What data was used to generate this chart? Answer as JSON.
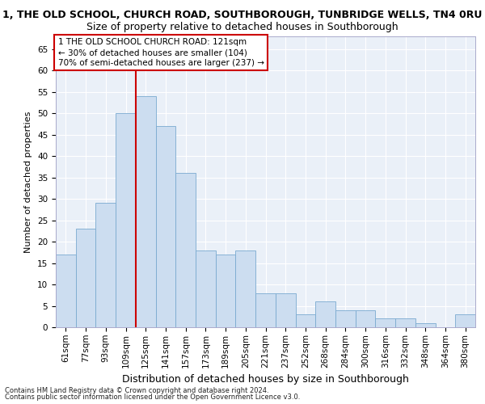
{
  "title_line1": "1, THE OLD SCHOOL, CHURCH ROAD, SOUTHBOROUGH, TUNBRIDGE WELLS, TN4 0RU",
  "title_line2": "Size of property relative to detached houses in Southborough",
  "xlabel": "Distribution of detached houses by size in Southborough",
  "ylabel": "Number of detached properties",
  "categories": [
    "61sqm",
    "77sqm",
    "93sqm",
    "109sqm",
    "125sqm",
    "141sqm",
    "157sqm",
    "173sqm",
    "189sqm",
    "205sqm",
    "221sqm",
    "237sqm",
    "252sqm",
    "268sqm",
    "284sqm",
    "300sqm",
    "316sqm",
    "332sqm",
    "348sqm",
    "364sqm",
    "380sqm"
  ],
  "values": [
    17,
    23,
    29,
    50,
    54,
    47,
    36,
    18,
    17,
    18,
    8,
    8,
    3,
    6,
    4,
    4,
    2,
    2,
    1,
    0,
    3
  ],
  "bar_color": "#ccddf0",
  "bar_edge_color": "#7aaad0",
  "vline_color": "#cc0000",
  "vline_x_index": 4,
  "annotation_text": "1 THE OLD SCHOOL CHURCH ROAD: 121sqm\n← 30% of detached houses are smaller (104)\n70% of semi-detached houses are larger (237) →",
  "annotation_box_color": "#ffffff",
  "annotation_box_edge": "#cc0000",
  "ylim": [
    0,
    68
  ],
  "yticks": [
    0,
    5,
    10,
    15,
    20,
    25,
    30,
    35,
    40,
    45,
    50,
    55,
    60,
    65
  ],
  "footer_line1": "Contains HM Land Registry data © Crown copyright and database right 2024.",
  "footer_line2": "Contains public sector information licensed under the Open Government Licence v3.0.",
  "bg_color": "#eaf0f8",
  "grid_color": "#ffffff",
  "title1_fontsize": 9,
  "title2_fontsize": 9,
  "ylabel_fontsize": 8,
  "xlabel_fontsize": 9,
  "tick_fontsize": 7.5,
  "annot_fontsize": 7.5,
  "footer_fontsize": 6
}
